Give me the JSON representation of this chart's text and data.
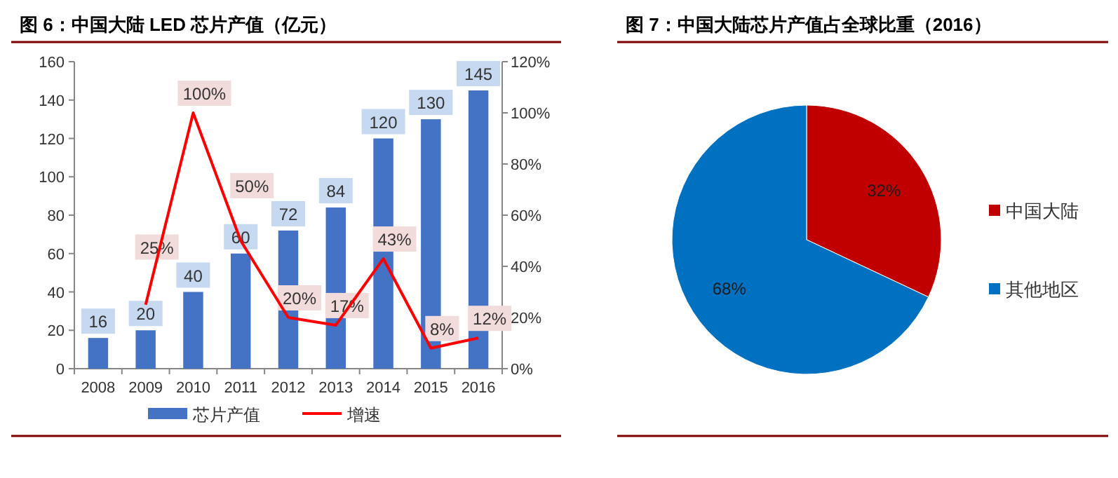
{
  "chart_data": [
    {
      "type": "bar",
      "title": "图 6：中国大陆 LED 芯片产值（亿元）",
      "categories": [
        "2008",
        "2009",
        "2010",
        "2011",
        "2012",
        "2013",
        "2014",
        "2015",
        "2016"
      ],
      "series": [
        {
          "name": "芯片产值",
          "type": "bar",
          "color": "#4472c4",
          "values": [
            16,
            20,
            40,
            60,
            72,
            84,
            120,
            130,
            145
          ],
          "value_labels": [
            "16",
            "20",
            "40",
            "60",
            "72",
            "84",
            "120",
            "130",
            "145"
          ]
        },
        {
          "name": "增速",
          "type": "line",
          "axis": "y2",
          "color": "#ff0000",
          "values": [
            null,
            25,
            100,
            50,
            20,
            17,
            43,
            8,
            12
          ],
          "value_labels": [
            null,
            "25%",
            "100%",
            "50%",
            "20%",
            "17%",
            "43%",
            "8%",
            "12%"
          ]
        }
      ],
      "ylim": [
        0,
        160
      ],
      "yticks": [
        0,
        20,
        40,
        60,
        80,
        100,
        120,
        140,
        160
      ],
      "y2lim": [
        0,
        120
      ],
      "y2ticks": [
        {
          "value": 0,
          "label": "0%"
        },
        {
          "value": 20,
          "label": "20%"
        },
        {
          "value": 40,
          "label": "40%"
        },
        {
          "value": 60,
          "label": "60%"
        },
        {
          "value": 80,
          "label": "80%"
        },
        {
          "value": 100,
          "label": "100%"
        },
        {
          "value": 120,
          "label": "120%"
        }
      ],
      "legend": "bottom"
    },
    {
      "type": "pie",
      "title": "图 7：中国大陆芯片产值占全球比重（2016）",
      "categories": [
        "中国大陆",
        "其他地区"
      ],
      "values": [
        32,
        68
      ],
      "colors": [
        "#c00000",
        "#0070c0"
      ],
      "value_labels": [
        "32%",
        "68%"
      ],
      "legend": "right"
    }
  ]
}
